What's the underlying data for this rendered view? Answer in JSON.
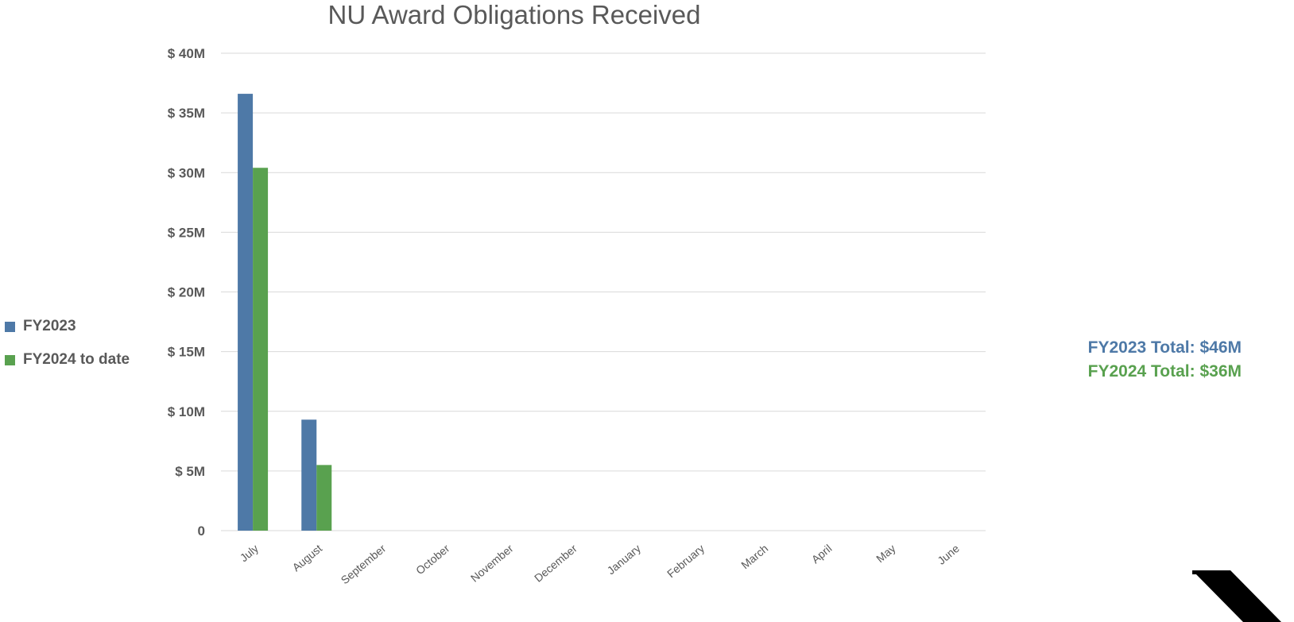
{
  "chart_data": {
    "type": "bar",
    "title": "NU Award Obligations Received",
    "categories": [
      "July",
      "August",
      "September",
      "October",
      "November",
      "December",
      "January",
      "February",
      "March",
      "April",
      "May",
      "June"
    ],
    "series": [
      {
        "name": "FY2023",
        "color": "#4e79a7",
        "values": [
          36.6,
          9.3,
          null,
          null,
          null,
          null,
          null,
          null,
          null,
          null,
          null,
          null
        ]
      },
      {
        "name": "FY2024 to date",
        "color": "#59a14f",
        "values": [
          30.4,
          5.5,
          null,
          null,
          null,
          null,
          null,
          null,
          null,
          null,
          null,
          null
        ]
      }
    ],
    "ylim": [
      0,
      40
    ],
    "yticks": [
      0,
      5,
      10,
      15,
      20,
      25,
      30,
      35,
      40
    ],
    "ytick_labels": [
      "0",
      "$ 5M",
      "$ 10M",
      "$ 15M",
      "$ 20M",
      "$ 25M",
      "$ 30M",
      "$ 35M",
      "$ 40M"
    ],
    "xlabel": "",
    "ylabel": "",
    "grid": true,
    "legend_placement": "left"
  },
  "totals": {
    "fy2023": "FY2023 Total: $46M",
    "fy2024": "FY2024 Total: $36M"
  },
  "colors": {
    "fy2023": "#4e79a7",
    "fy2024": "#59a14f",
    "grid": "#d9d9d9",
    "axis_text": "#595959"
  },
  "logo": {
    "icon": "northwestern-n-logo-icon"
  }
}
